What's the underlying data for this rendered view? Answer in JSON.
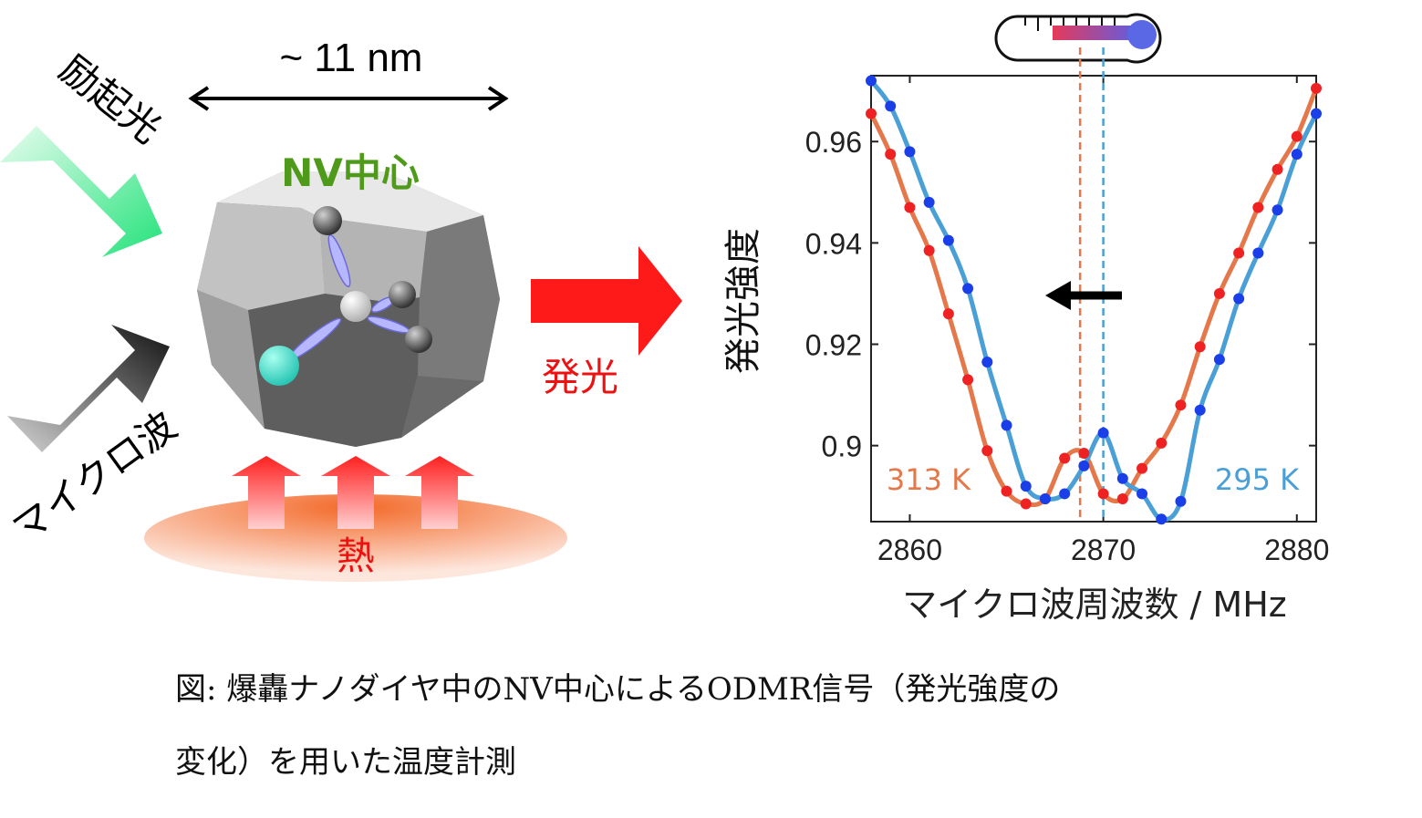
{
  "diagram": {
    "size_label": "~ 11 nm",
    "excitation_label": "励起光",
    "nv_label": "NV中心",
    "microwave_label": "マイクロ波",
    "emission_label": "発光",
    "heat_label": "熱",
    "colors": {
      "excitation_arrow": "#3ee58f",
      "emission_arrow": "#ff1a1a",
      "nv_label": "#4f9a1a",
      "heat": "#f08040"
    }
  },
  "chart_data": {
    "type": "scatter",
    "title": "",
    "xlabel": "マイクロ波周波数 / MHz",
    "ylabel": "発光強度",
    "xlim": [
      2858,
      2881
    ],
    "ylim": [
      0.885,
      0.973
    ],
    "xticks": [
      2860,
      2870,
      2880
    ],
    "yticks": [
      0.9,
      0.92,
      0.94,
      0.96
    ],
    "ytick_labels": [
      "0.9",
      "0.92",
      "0.94",
      "0.96"
    ],
    "series": [
      {
        "name": "313 K",
        "color": "#e5784a",
        "dot_color": "#ee2222",
        "center": 2868.8,
        "x": [
          2858,
          2859,
          2860,
          2861,
          2862,
          2863,
          2864,
          2865,
          2866,
          2867,
          2868,
          2869,
          2870,
          2871,
          2872,
          2873,
          2874,
          2875,
          2876,
          2877,
          2878,
          2879,
          2880,
          2881
        ],
        "y": [
          0.9655,
          0.9575,
          0.947,
          0.9385,
          0.926,
          0.913,
          0.899,
          0.891,
          0.8885,
          0.8895,
          0.8975,
          0.8985,
          0.8905,
          0.8895,
          0.8955,
          0.9005,
          0.908,
          0.9195,
          0.93,
          0.938,
          0.947,
          0.9545,
          0.961,
          0.9705
        ]
      },
      {
        "name": "295 K",
        "color": "#4a9fd6",
        "dot_color": "#1a3ee8",
        "center": 2870.0,
        "x": [
          2858,
          2859,
          2860,
          2861,
          2862,
          2863,
          2864,
          2865,
          2866,
          2867,
          2868,
          2869,
          2870,
          2871,
          2872,
          2873,
          2874,
          2875,
          2876,
          2877,
          2878,
          2879,
          2880,
          2881
        ],
        "y": [
          0.972,
          0.967,
          0.958,
          0.948,
          0.9405,
          0.931,
          0.9165,
          0.904,
          0.892,
          0.8895,
          0.8905,
          0.896,
          0.9025,
          0.8935,
          0.8905,
          0.8855,
          0.889,
          0.907,
          0.917,
          0.929,
          0.938,
          0.9465,
          0.9575,
          0.9655
        ]
      }
    ],
    "legend": [
      "313 K",
      "295 K"
    ],
    "annotation": "shift-arrow-left"
  },
  "caption": {
    "line1": "図: 爆轟ナノダイヤ中のNV中心によるODMR信号（発光強度の",
    "line2": "変化）を用いた温度計測"
  }
}
